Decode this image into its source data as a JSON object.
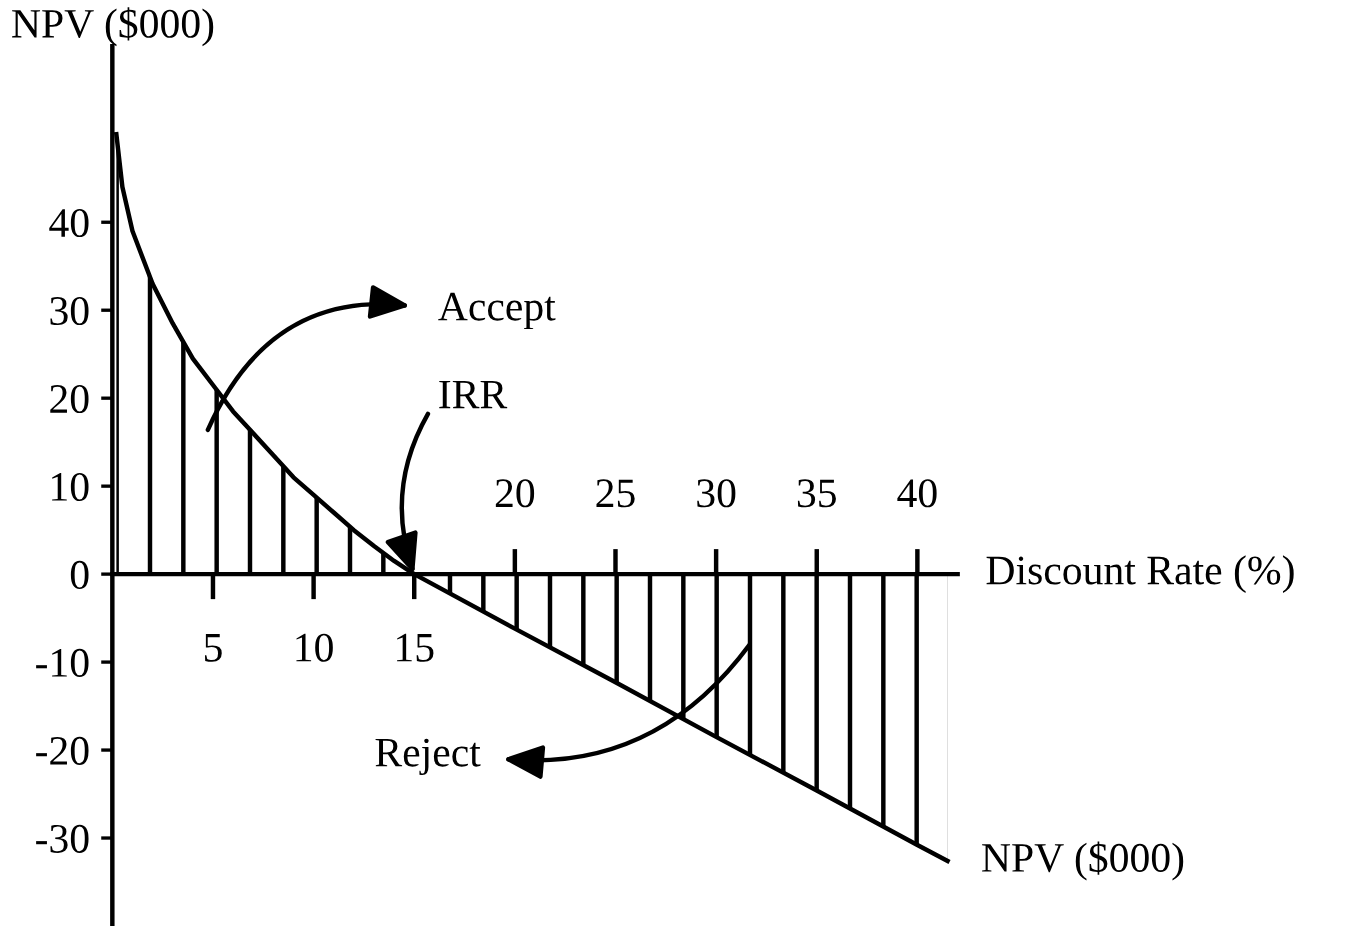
{
  "chart_data": {
    "type": "area",
    "ylabel": "NPV ($000)",
    "xlabel": "Discount Rate (%)",
    "x": [
      0.2,
      0.5,
      1,
      2,
      3,
      4,
      5,
      6,
      7,
      8,
      9,
      10,
      11,
      12,
      13,
      14,
      15,
      20,
      25,
      30,
      35,
      40,
      41.5
    ],
    "series": [
      {
        "name": "NPV ($000)",
        "color": "#000000",
        "values": [
          50,
          44,
          39,
          33,
          28.5,
          24.5,
          21.5,
          18.5,
          16,
          13.5,
          11,
          9,
          7,
          5,
          3.2,
          1.5,
          0,
          -6.2,
          -12.3,
          -18.5,
          -24.6,
          -30.8,
          -32.6
        ]
      }
    ],
    "xlim": [
      0,
      42
    ],
    "ylim": [
      -40,
      60
    ],
    "xticks": [
      5,
      10,
      15
    ],
    "x2lim": [
      0,
      42
    ],
    "x2ticks": [
      20,
      25,
      30,
      35,
      40
    ],
    "yticks": [
      -30,
      -20,
      -10,
      0,
      10,
      20,
      30,
      40
    ],
    "annotations": [
      "Accept",
      {
        "text": "IRR",
        "x": 15,
        "y": 0
      },
      "Reject"
    ],
    "grid": false,
    "legend": false,
    "marker": "none",
    "line_style": "solid"
  }
}
